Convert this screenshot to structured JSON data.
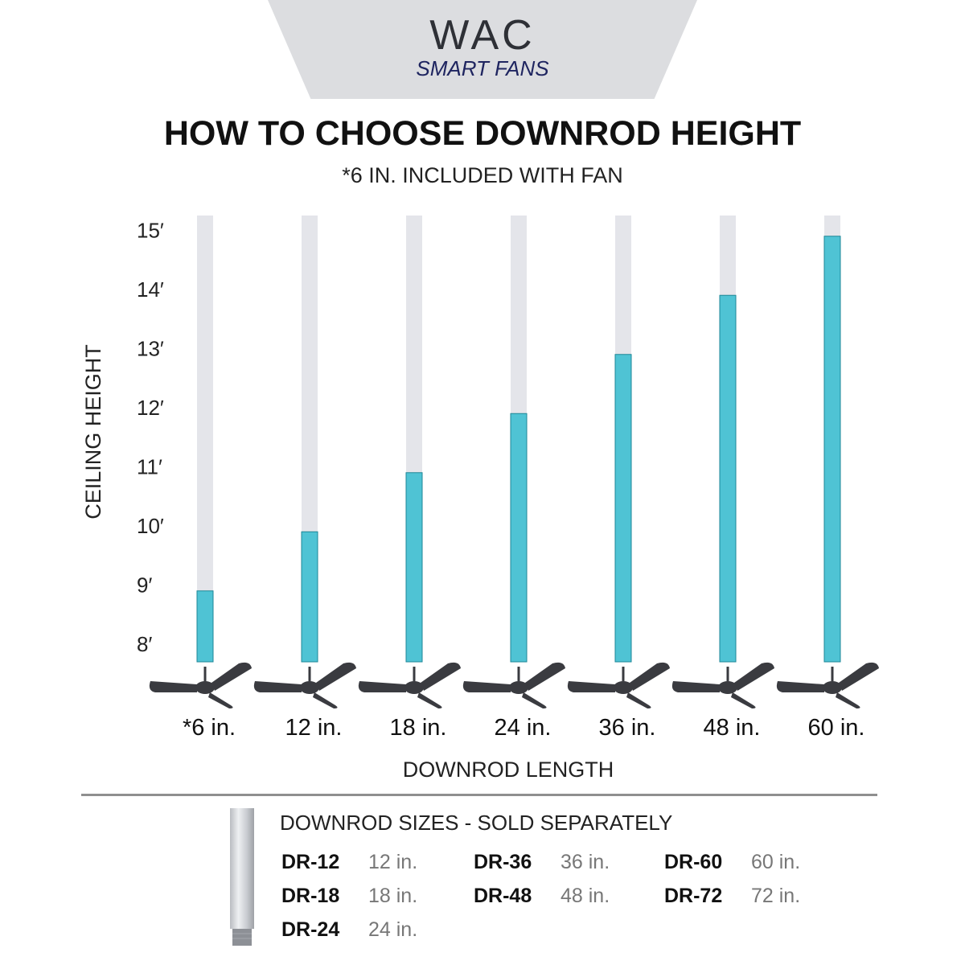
{
  "brand": {
    "name": "WAC",
    "sub": "SMART FANS",
    "accent_color": "#1f2560",
    "banner_color": "#dcdde0"
  },
  "chart_data": {
    "type": "bar",
    "title": "HOW TO CHOOSE DOWNROD HEIGHT",
    "subtitle": "*6 IN. INCLUDED WITH FAN",
    "xlabel": "DOWNROD LENGTH",
    "ylabel": "CEILING HEIGHT",
    "categories": [
      "*6 in.",
      "12 in.",
      "18 in.",
      "24 in.",
      "36 in.",
      "48 in.",
      "60 in."
    ],
    "values": [
      9,
      10,
      11,
      12,
      13,
      14,
      15
    ],
    "y_ticks": [
      "8′",
      "9′",
      "10′",
      "11′",
      "12′",
      "13′",
      "14′",
      "15′"
    ],
    "ylim": [
      7.8,
      15.35
    ],
    "grid": false,
    "bar_color": "#4fc3d4",
    "track_color": "#e4e5ea",
    "fan_color": "#3a3b40",
    "fan_icon": "ceiling-fan-icon"
  },
  "sold_separately": {
    "heading": "DOWNROD SIZES - SOLD SEPARATELY",
    "rod_icon": "downrod-icon",
    "items": [
      {
        "code": "DR-12",
        "length": "12 in."
      },
      {
        "code": "DR-18",
        "length": "18 in."
      },
      {
        "code": "DR-24",
        "length": "24 in."
      },
      {
        "code": "DR-36",
        "length": "36 in."
      },
      {
        "code": "DR-48",
        "length": "48 in."
      },
      {
        "code": "DR-60",
        "length": "60 in."
      },
      {
        "code": "DR-72",
        "length": "72 in."
      }
    ]
  }
}
